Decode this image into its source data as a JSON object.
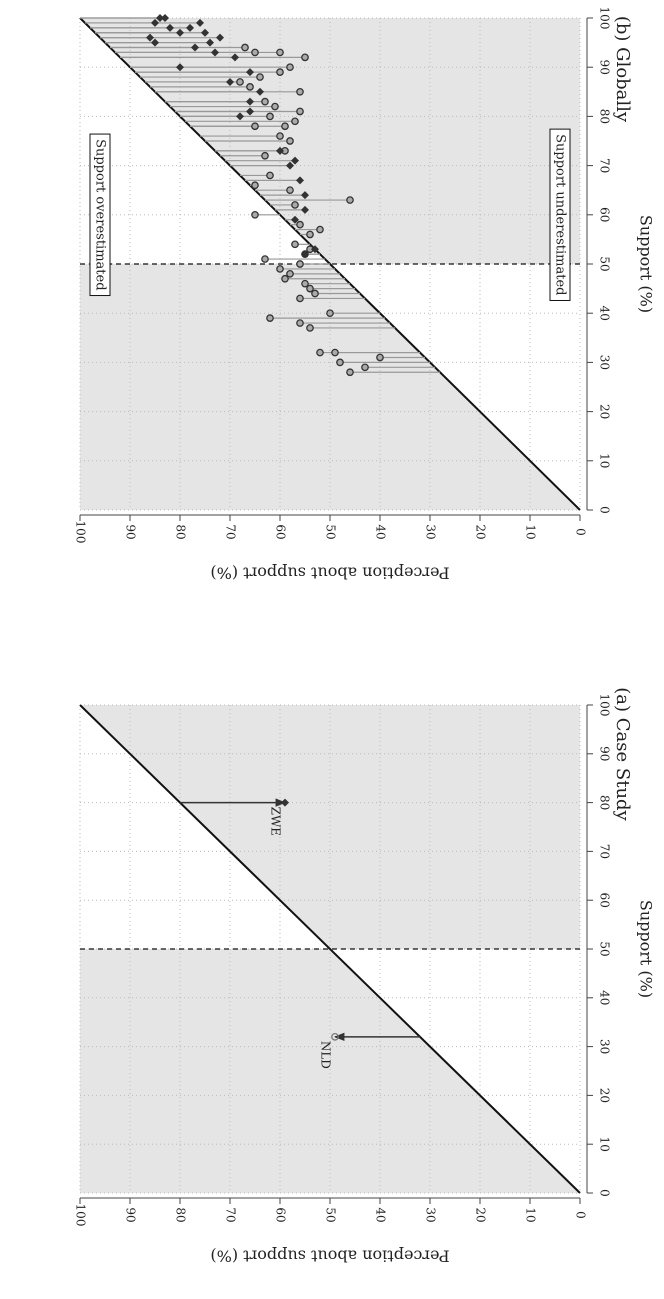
{
  "chart_data": [
    {
      "type": "scatter",
      "title": "(a) Case Study",
      "x_label": "Support (%)",
      "y_label": "Perception about support (%)",
      "xlim": [
        0,
        100
      ],
      "ylim": [
        0,
        100
      ],
      "xticks": [
        0,
        10,
        20,
        30,
        40,
        50,
        60,
        70,
        80,
        90,
        100
      ],
      "yticks": [
        0,
        10,
        20,
        30,
        40,
        50,
        60,
        70,
        80,
        90,
        100
      ],
      "reference_x": 50,
      "x": [
        32,
        80
      ],
      "y": [
        49,
        59
      ],
      "markers": [
        "circle",
        "diamond"
      ],
      "point_labels": [
        "NLD",
        "ZWE"
      ],
      "annotations": []
    },
    {
      "type": "scatter",
      "title": "(b) Globally",
      "x_label": "Support (%)",
      "y_label": "Perception about support (%)",
      "xlim": [
        0,
        100
      ],
      "ylim": [
        0,
        100
      ],
      "xticks": [
        0,
        10,
        20,
        30,
        40,
        50,
        60,
        70,
        80,
        90,
        100
      ],
      "yticks": [
        0,
        10,
        20,
        30,
        40,
        50,
        60,
        70,
        80,
        90,
        100
      ],
      "reference_x": 50,
      "x": [
        28,
        29,
        30,
        31,
        32,
        32,
        37,
        38,
        39,
        40,
        43,
        44,
        45,
        46,
        47,
        48,
        49,
        50,
        51,
        52,
        53,
        54,
        56,
        57,
        58,
        60,
        62,
        63,
        65,
        66,
        68,
        72,
        73,
        75,
        76,
        78,
        78,
        79,
        80,
        81,
        82,
        83,
        85,
        86,
        87,
        88,
        89,
        90,
        92,
        93,
        93,
        94,
        52,
        53,
        59,
        61,
        64,
        67,
        70,
        71,
        73,
        80,
        81,
        83,
        85,
        87,
        89,
        90,
        92,
        93,
        94,
        95,
        95,
        96,
        96,
        97,
        97,
        98,
        98,
        99,
        99,
        100,
        100
      ],
      "y": [
        46,
        43,
        48,
        40,
        52,
        49,
        54,
        56,
        62,
        50,
        56,
        53,
        54,
        55,
        59,
        58,
        60,
        56,
        63,
        55,
        54,
        57,
        54,
        52,
        56,
        65,
        57,
        46,
        58,
        65,
        62,
        63,
        59,
        58,
        60,
        59,
        65,
        57,
        62,
        56,
        61,
        63,
        56,
        66,
        68,
        64,
        60,
        58,
        55,
        60,
        65,
        67,
        55,
        53,
        57,
        55,
        55,
        56,
        58,
        57,
        60,
        68,
        66,
        66,
        64,
        70,
        66,
        80,
        69,
        73,
        77,
        74,
        85,
        72,
        86,
        75,
        80,
        78,
        82,
        76,
        85,
        83,
        84
      ],
      "markers": [
        "circle",
        "circle",
        "circle",
        "circle",
        "circle",
        "circle",
        "circle",
        "circle",
        "circle",
        "circle",
        "circle",
        "circle",
        "circle",
        "circle",
        "circle",
        "circle",
        "circle",
        "circle",
        "circle",
        "circle",
        "circle",
        "circle",
        "circle",
        "circle",
        "circle",
        "circle",
        "circle",
        "circle",
        "circle",
        "circle",
        "circle",
        "circle",
        "circle",
        "circle",
        "circle",
        "circle",
        "circle",
        "circle",
        "circle",
        "circle",
        "circle",
        "circle",
        "circle",
        "circle",
        "circle",
        "circle",
        "circle",
        "circle",
        "circle",
        "circle",
        "circle",
        "circle",
        "diamond",
        "diamond",
        "diamond",
        "diamond",
        "diamond",
        "diamond",
        "diamond",
        "diamond",
        "diamond",
        "diamond",
        "diamond",
        "diamond",
        "diamond",
        "diamond",
        "diamond",
        "diamond",
        "diamond",
        "diamond",
        "diamond",
        "diamond",
        "diamond",
        "diamond",
        "diamond",
        "diamond",
        "diamond",
        "diamond",
        "diamond",
        "diamond",
        "diamond",
        "diamond",
        "diamond"
      ],
      "annotations": [
        {
          "text": "Support overestimated",
          "x": 60,
          "y": 96
        },
        {
          "text": "Support underestimated",
          "x": 60,
          "y": 4
        }
      ]
    }
  ]
}
